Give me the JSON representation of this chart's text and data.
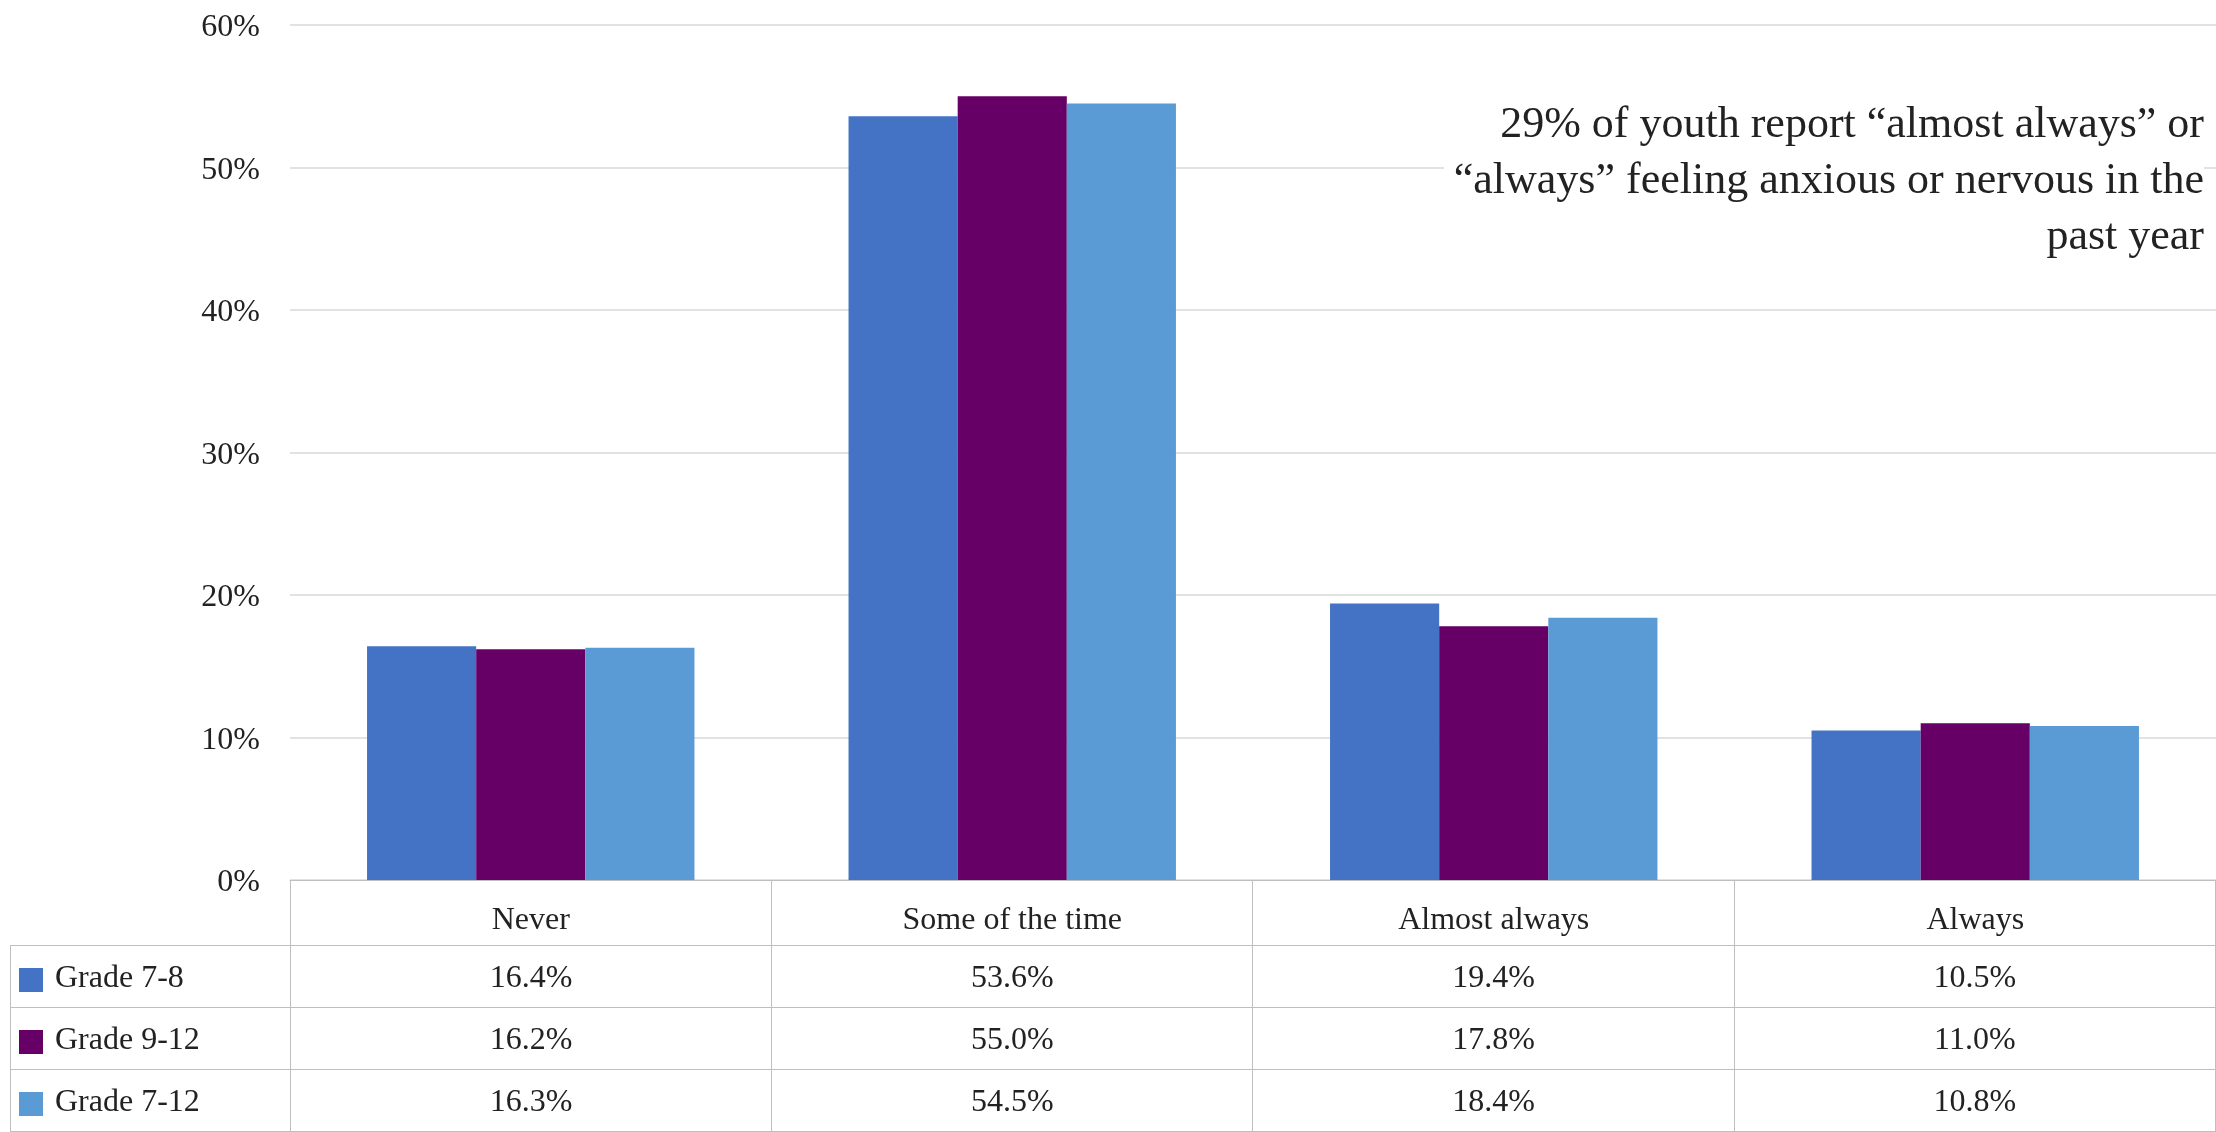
{
  "chart_data": {
    "type": "bar",
    "categories": [
      "Never",
      "Some of the time",
      "Almost always",
      "Always"
    ],
    "series": [
      {
        "name": "Grade  7-8",
        "color": "#4472c4",
        "values": [
          16.4,
          53.6,
          19.4,
          10.5
        ],
        "value_labels": [
          "16.4%",
          "53.6%",
          "19.4%",
          "10.5%"
        ]
      },
      {
        "name": "Grade  9-12",
        "color": "#660066",
        "values": [
          16.2,
          55.0,
          17.8,
          11.0
        ],
        "value_labels": [
          "16.2%",
          "55.0%",
          "17.8%",
          "11.0%"
        ]
      },
      {
        "name": "Grade  7-12",
        "color": "#5b9bd5",
        "values": [
          16.3,
          54.5,
          18.4,
          10.8
        ],
        "value_labels": [
          "16.3%",
          "54.5%",
          "18.4%",
          "10.8%"
        ]
      }
    ],
    "ylim": [
      0,
      60
    ],
    "yticks": [
      {
        "value": 0,
        "label": "0%"
      },
      {
        "value": 10,
        "label": "10%"
      },
      {
        "value": 20,
        "label": "20%"
      },
      {
        "value": 30,
        "label": "30%"
      },
      {
        "value": 40,
        "label": "40%"
      },
      {
        "value": 50,
        "label": "50%"
      },
      {
        "value": 60,
        "label": "60%"
      }
    ],
    "grid": "y",
    "legend": "bottom left",
    "annotations": [
      "29% of youth report “almost always” or “always” feeling anxious or nervous in the past year"
    ]
  }
}
